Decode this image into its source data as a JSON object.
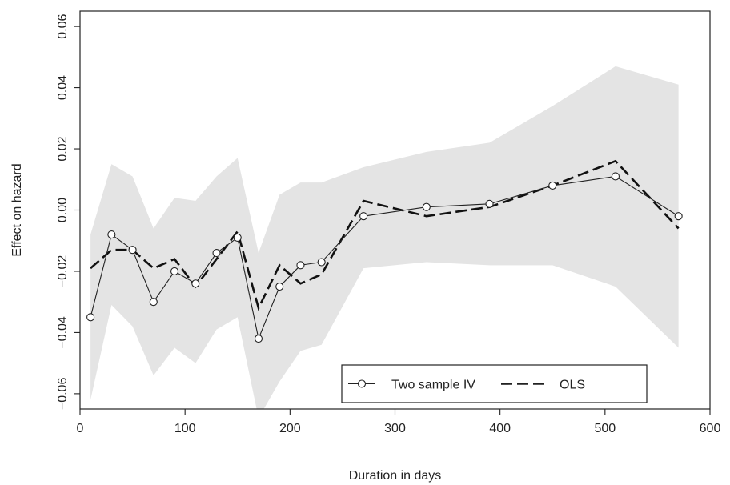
{
  "chart_data": {
    "type": "line",
    "title": "",
    "xlabel": "Duration in days",
    "ylabel": "Effect on hazard",
    "xlim": [
      0,
      600
    ],
    "ylim": [
      -0.065,
      0.065
    ],
    "x_ticks": [
      0,
      100,
      200,
      300,
      400,
      500,
      600
    ],
    "x_tick_labels": [
      "0",
      "100",
      "200",
      "300",
      "400",
      "500",
      "600"
    ],
    "y_ticks": [
      -0.06,
      -0.04,
      -0.02,
      0.0,
      0.02,
      0.04,
      0.06
    ],
    "y_tick_labels": [
      "−0.06",
      "−0.04",
      "−0.02",
      "0.00",
      "0.02",
      "0.04",
      "0.06"
    ],
    "reference_line": {
      "y": 0.0,
      "style": "dashed"
    },
    "confidence_band": {
      "x": [
        10,
        30,
        50,
        70,
        90,
        110,
        130,
        150,
        170,
        190,
        210,
        230,
        270,
        330,
        390,
        450,
        510,
        570
      ],
      "lower": [
        -0.062,
        -0.031,
        -0.038,
        -0.054,
        -0.045,
        -0.05,
        -0.039,
        -0.035,
        -0.068,
        -0.056,
        -0.046,
        -0.044,
        -0.019,
        -0.017,
        -0.018,
        -0.018,
        -0.025,
        -0.045
      ],
      "upper": [
        -0.008,
        0.015,
        0.011,
        -0.006,
        0.004,
        0.003,
        0.011,
        0.017,
        -0.014,
        0.005,
        0.009,
        0.009,
        0.014,
        0.019,
        0.022,
        0.034,
        0.047,
        0.041
      ],
      "color": "#e4e4e4"
    },
    "series": [
      {
        "name": "Two sample IV",
        "style": "solid-with-circles",
        "x": [
          10,
          30,
          50,
          70,
          90,
          110,
          130,
          150,
          170,
          190,
          210,
          230,
          270,
          330,
          390,
          450,
          510,
          570
        ],
        "values": [
          -0.035,
          -0.008,
          -0.013,
          -0.03,
          -0.02,
          -0.024,
          -0.014,
          -0.009,
          -0.042,
          -0.025,
          -0.018,
          -0.017,
          -0.002,
          0.001,
          0.002,
          0.008,
          0.011,
          -0.002
        ]
      },
      {
        "name": "OLS",
        "style": "dashed",
        "x": [
          10,
          30,
          50,
          70,
          90,
          110,
          130,
          150,
          170,
          190,
          210,
          230,
          270,
          330,
          390,
          450,
          510,
          570
        ],
        "values": [
          -0.019,
          -0.013,
          -0.013,
          -0.019,
          -0.016,
          -0.025,
          -0.016,
          -0.007,
          -0.032,
          -0.018,
          -0.024,
          -0.021,
          0.003,
          -0.002,
          0.001,
          0.008,
          0.016,
          -0.006
        ]
      }
    ],
    "grid": false,
    "legend_position": "bottom-right"
  }
}
